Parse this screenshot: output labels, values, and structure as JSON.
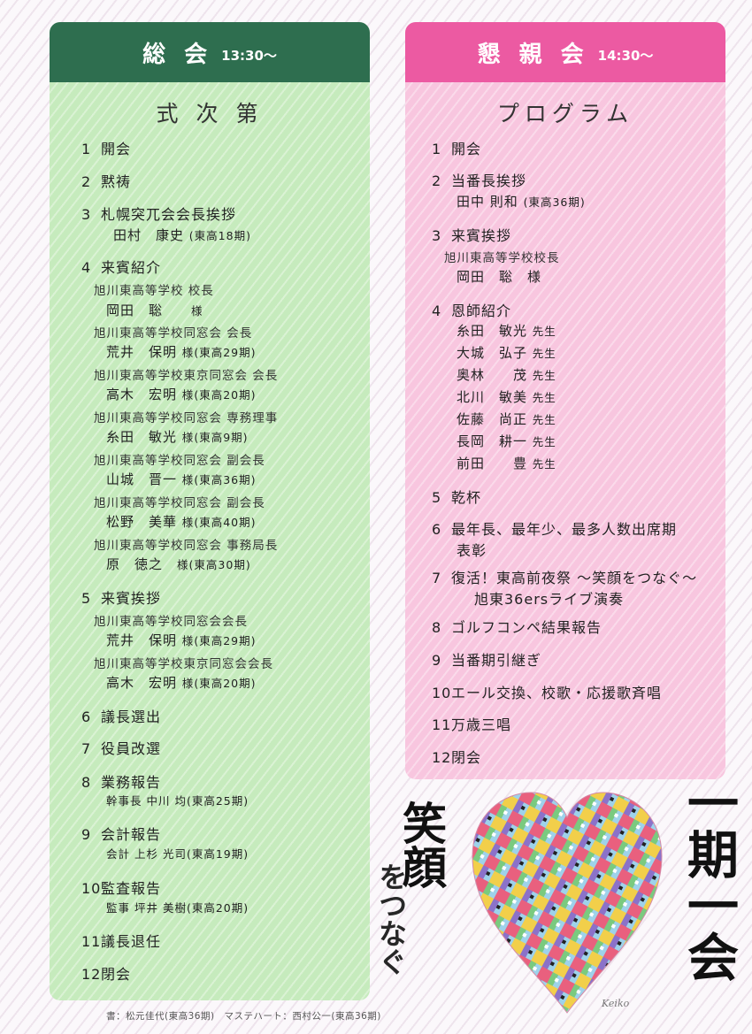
{
  "left": {
    "title": "総 会",
    "time": "13:30〜",
    "heading": "式 次 第",
    "items": [
      {
        "n": "1",
        "t": "開会"
      },
      {
        "n": "2",
        "t": "黙祷"
      },
      {
        "n": "3",
        "t": "札幌突兀会会長挨拶"
      },
      {
        "n": "4",
        "t": "来賓紹介"
      },
      {
        "n": "5",
        "t": "来賓挨拶"
      },
      {
        "n": "6",
        "t": "議長選出"
      },
      {
        "n": "7",
        "t": "役員改選"
      },
      {
        "n": "8",
        "t": "業務報告"
      },
      {
        "n": "9",
        "t": "会計報告"
      },
      {
        "n": "10",
        "t": "監査報告"
      },
      {
        "n": "11",
        "t": "議長退任"
      },
      {
        "n": "12",
        "t": "閉会"
      }
    ],
    "item3_name": "田村　康史",
    "item3_term": "(東高18期)",
    "guests": [
      {
        "org": "旭川東高等学校 校長",
        "name": "岡田　聡",
        "hon": "様",
        "term": ""
      },
      {
        "org": "旭川東高等学校同窓会 会長",
        "name": "荒井　保明",
        "hon": "様",
        "term": "(東高29期)"
      },
      {
        "org": "旭川東高等学校東京同窓会 会長",
        "name": "高木　宏明",
        "hon": "様",
        "term": "(東高20期)"
      },
      {
        "org": "旭川東高等学校同窓会 専務理事",
        "name": "糸田　敏光",
        "hon": "様",
        "term": "(東高9期)"
      },
      {
        "org": "旭川東高等学校同窓会 副会長",
        "name": "山城　晋一",
        "hon": "様",
        "term": "(東高36期)"
      },
      {
        "org": "旭川東高等学校同窓会 副会長",
        "name": "松野　美華",
        "hon": "様",
        "term": "(東高40期)"
      },
      {
        "org": "旭川東高等学校同窓会 事務局長",
        "name": "原　徳之",
        "hon": "様",
        "term": "(東高30期)"
      }
    ],
    "speeches": [
      {
        "org": "旭川東高等学校同窓会会長",
        "name": "荒井　保明",
        "hon": "様",
        "term": "(東高29期)"
      },
      {
        "org": "旭川東高等学校東京同窓会会長",
        "name": "高木　宏明",
        "hon": "様",
        "term": "(東高20期)"
      }
    ],
    "item8_detail": "幹事長 中川 均",
    "item8_term": "(東高25期)",
    "item9_detail": "会計 上杉 光司",
    "item9_term": "(東高19期)",
    "item10_detail": "監事 坪井 美樹",
    "item10_term": "(東高20期)"
  },
  "right": {
    "title": "懇 親 会",
    "time": "14:30〜",
    "heading": "プログラム",
    "items": [
      {
        "n": "1",
        "t": "開会"
      },
      {
        "n": "2",
        "t": "当番長挨拶"
      },
      {
        "n": "3",
        "t": "来賓挨拶"
      },
      {
        "n": "4",
        "t": "恩師紹介"
      },
      {
        "n": "5",
        "t": "乾杯"
      },
      {
        "n": "6",
        "t": "最年長、最年少、最多人数出席期"
      },
      {
        "n": "7",
        "t": "復活！東高前夜祭 〜笑顔をつなぐ〜"
      },
      {
        "n": "8",
        "t": "ゴルフコンペ結果報告"
      },
      {
        "n": "9",
        "t": "当番期引継ぎ"
      },
      {
        "n": "10",
        "t": "エール交換、校歌・応援歌斉唱"
      },
      {
        "n": "11",
        "t": "万歳三唱"
      },
      {
        "n": "12",
        "t": "閉会"
      }
    ],
    "item2_name": "田中 則和",
    "item2_term": "(東高36期)",
    "item3_org": "旭川東高等学校校長",
    "item3_name": "岡田　聡　様",
    "teachers": [
      {
        "name": "糸田　敏光",
        "hon": "先生"
      },
      {
        "name": "大城　弘子",
        "hon": "先生"
      },
      {
        "name": "奥林　　茂",
        "hon": "先生"
      },
      {
        "name": "北川　敏美",
        "hon": "先生"
      },
      {
        "name": "佐藤　尚正",
        "hon": "先生"
      },
      {
        "name": "長岡　耕一",
        "hon": "先生"
      },
      {
        "name": "前田　　豊",
        "hon": "先生"
      }
    ],
    "item6_cont": "表彰",
    "item7_cont": "旭東36ersライブ演奏"
  },
  "calligraphy": {
    "left_big": "笑顔",
    "left_kana": "をつなぐ",
    "right": "一期一会",
    "signature": "Keiko"
  },
  "credit": "書：松元佳代(東高36期)　マステハート：西村公一(東高36期)",
  "colors": {
    "green_header": "#2e6e4f",
    "green_panel": "#c6ebbd",
    "pink_header": "#ec5aa2",
    "pink_panel": "#f8c6df"
  }
}
